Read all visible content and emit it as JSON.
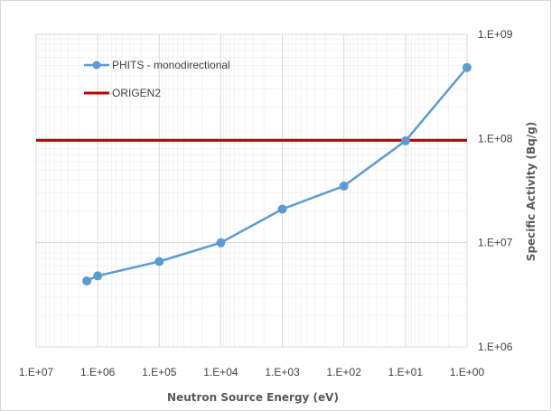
{
  "chart_data": {
    "type": "line",
    "x_scale": "log",
    "x_reversed": true,
    "y_scale": "log",
    "x_range": [
      10000000,
      1
    ],
    "y_range": [
      1000000,
      1000000000
    ],
    "xlabel": "Neutron Source Energy   (eV)",
    "ylabel": "Specific  Activity   (Bq/g)",
    "x_ticks": [
      "1.E+07",
      "1.E+06",
      "1.E+05",
      "1.E+04",
      "1.E+03",
      "1.E+02",
      "1.E+01",
      "1.E+00"
    ],
    "y_ticks": [
      "1.E+06",
      "1.E+07",
      "1.E+08",
      "1.E+09"
    ],
    "grid": true,
    "legend_position": "top-left",
    "series": [
      {
        "name": "PHITS - monodirectional",
        "color": "#5b9bd5",
        "marker": "circle",
        "x": [
          1500000,
          1000000,
          100000,
          10000,
          1000,
          100,
          10,
          1
        ],
        "y": [
          4300000,
          4800000,
          6600000,
          10000000,
          21000000,
          35000000,
          95000000,
          480000000
        ]
      },
      {
        "name": "ORIGEN2",
        "color": "#c00000",
        "type": "hline",
        "y": 96000000
      }
    ]
  }
}
